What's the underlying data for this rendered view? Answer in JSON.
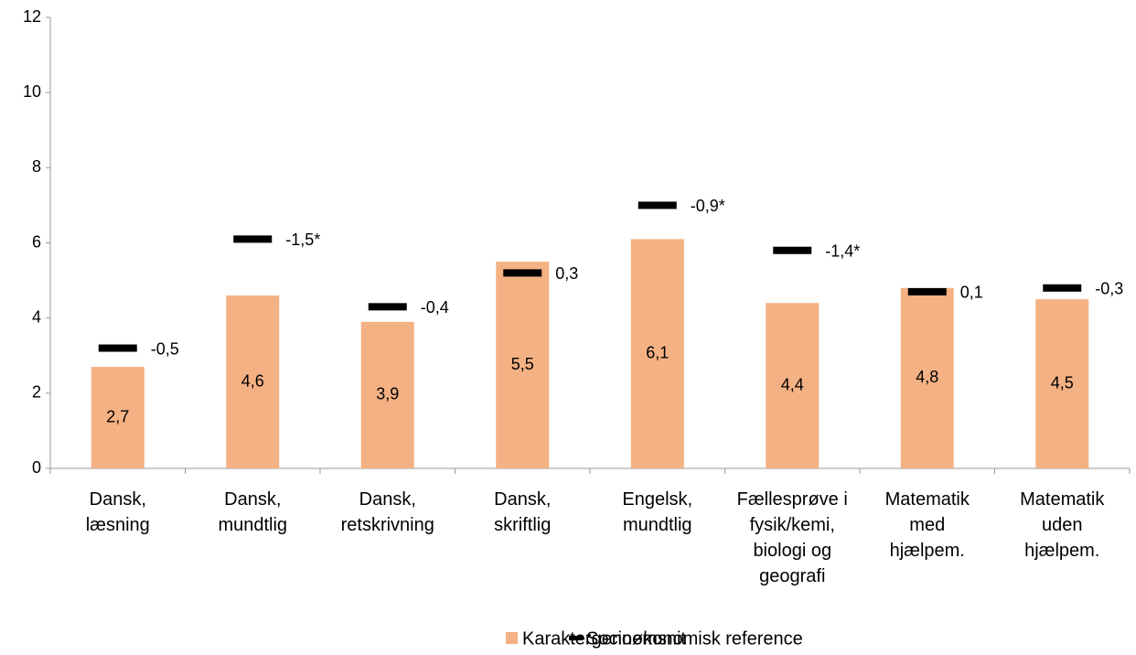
{
  "chart_data": {
    "type": "bar",
    "categories": [
      "Dansk,\nlæsning",
      "Dansk,\nmundtlig",
      "Dansk,\nretskrivning",
      "Dansk,\nskriftlig",
      "Engelsk,\nmundtlig",
      "Fællesprøve i\nfysik/kemi,\nbiologi og\ngeografi",
      "Matematik\nmed\nhjælpem.",
      "Matematik\nuden\nhjælpem."
    ],
    "series": [
      {
        "name": "Karaktergennemsnit",
        "color": "#f4b183",
        "values": [
          2.7,
          4.6,
          3.9,
          5.5,
          6.1,
          4.4,
          4.8,
          4.5
        ],
        "value_labels": [
          "2,7",
          "4,6",
          "3,9",
          "5,5",
          "6,1",
          "4,4",
          "4,8",
          "4,5"
        ]
      },
      {
        "name": "Socioøkonomisk reference",
        "color": "#000000",
        "values": [
          3.2,
          6.1,
          4.3,
          5.2,
          7.0,
          5.8,
          4.7,
          4.8
        ]
      }
    ],
    "annotations": [
      "-0,5",
      "-1,5*",
      "-0,4",
      "0,3",
      "-0,9*",
      "-1,4*",
      "0,1",
      "-0,3"
    ],
    "ylim": [
      0,
      12
    ],
    "yticks": [
      0,
      2,
      4,
      6,
      8,
      10,
      12
    ],
    "grid": false,
    "legend": "bottom"
  }
}
